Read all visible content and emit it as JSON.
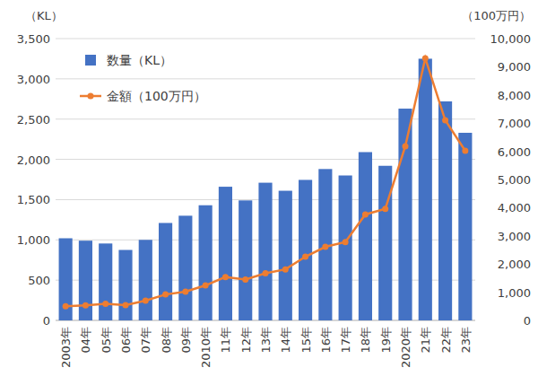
{
  "chart_data": {
    "type": "bar",
    "ylabel": "（KL）",
    "y2label": "（100万円）",
    "categories": [
      "2003年",
      "04年",
      "05年",
      "06年",
      "07年",
      "08年",
      "09年",
      "2010年",
      "11年",
      "12年",
      "13年",
      "14年",
      "15年",
      "16年",
      "17年",
      "18年",
      "19年",
      "2020年",
      "21年",
      "22年",
      "23年"
    ],
    "series": [
      {
        "name": "数量（KL）",
        "type": "bar",
        "color": "#4472c4",
        "values": [
          1020,
          990,
          955,
          875,
          1000,
          1210,
          1300,
          1430,
          1660,
          1490,
          1710,
          1610,
          1745,
          1880,
          1800,
          2090,
          1920,
          2630,
          3250,
          2720,
          2330
        ]
      },
      {
        "name": "金額（100万円）",
        "type": "line",
        "color": "#ed7d31",
        "marker": "circle",
        "axis": "y2",
        "values": [
          500,
          530,
          590,
          540,
          700,
          920,
          1020,
          1240,
          1540,
          1450,
          1670,
          1810,
          2260,
          2610,
          2780,
          3760,
          3960,
          6180,
          9300,
          7100,
          6020
        ]
      }
    ],
    "ylim": [
      0,
      3500
    ],
    "yticks": [
      0,
      500,
      {
        "value": 1000,
        "label": "1,000"
      },
      {
        "value": 1500,
        "label": "1,500"
      },
      {
        "value": 2000,
        "label": "2,000"
      },
      {
        "value": 2500,
        "label": "2,500"
      },
      {
        "value": 3000,
        "label": "3,000"
      },
      {
        "value": 3500,
        "label": "3,500"
      }
    ],
    "y2lim": [
      0,
      10000
    ],
    "y2ticks": [
      0,
      {
        "value": 1000,
        "label": "1,000"
      },
      {
        "value": 2000,
        "label": "2,000"
      },
      {
        "value": 3000,
        "label": "3,000"
      },
      {
        "value": 4000,
        "label": "4,000"
      },
      {
        "value": 5000,
        "label": "5,000"
      },
      {
        "value": 6000,
        "label": "6,000"
      },
      {
        "value": 7000,
        "label": "7,000"
      },
      {
        "value": 8000,
        "label": "8,000"
      },
      {
        "value": 9000,
        "label": "9,000"
      },
      {
        "value": 10000,
        "label": "10,000"
      }
    ],
    "grid": true,
    "legend": "upper left"
  }
}
